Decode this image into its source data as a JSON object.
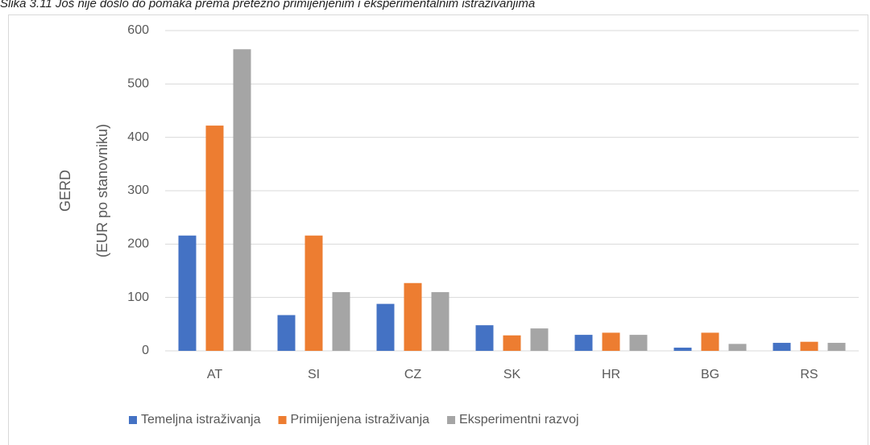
{
  "chart_data": {
    "type": "bar",
    "title": "Slika 3.11 Još nije došlo do pomaka prema pretežno primijenjenim i eksperimentalnim istraživanjima",
    "y_label": [
      "GERD",
      "(EUR po stanovniku)"
    ],
    "categories": [
      "AT",
      "SI",
      "CZ",
      "SK",
      "HR",
      "BG",
      "RS"
    ],
    "series": [
      {
        "name": "Temeljna istraživanja",
        "color": "#4472c4",
        "values": [
          216,
          67,
          88,
          48,
          30,
          6,
          15
        ]
      },
      {
        "name": "Primijenjena istraživanja",
        "color": "#ed7d31",
        "values": [
          422,
          216,
          127,
          29,
          34,
          34,
          17
        ]
      },
      {
        "name": "Eksperimentni razvoj",
        "color": "#a5a5a5",
        "values": [
          565,
          110,
          110,
          42,
          30,
          13,
          15
        ]
      }
    ],
    "ylim": [
      0,
      600
    ],
    "yticks": [
      0,
      100,
      200,
      300,
      400,
      500,
      600
    ],
    "grid": true,
    "legend": "bottom"
  }
}
